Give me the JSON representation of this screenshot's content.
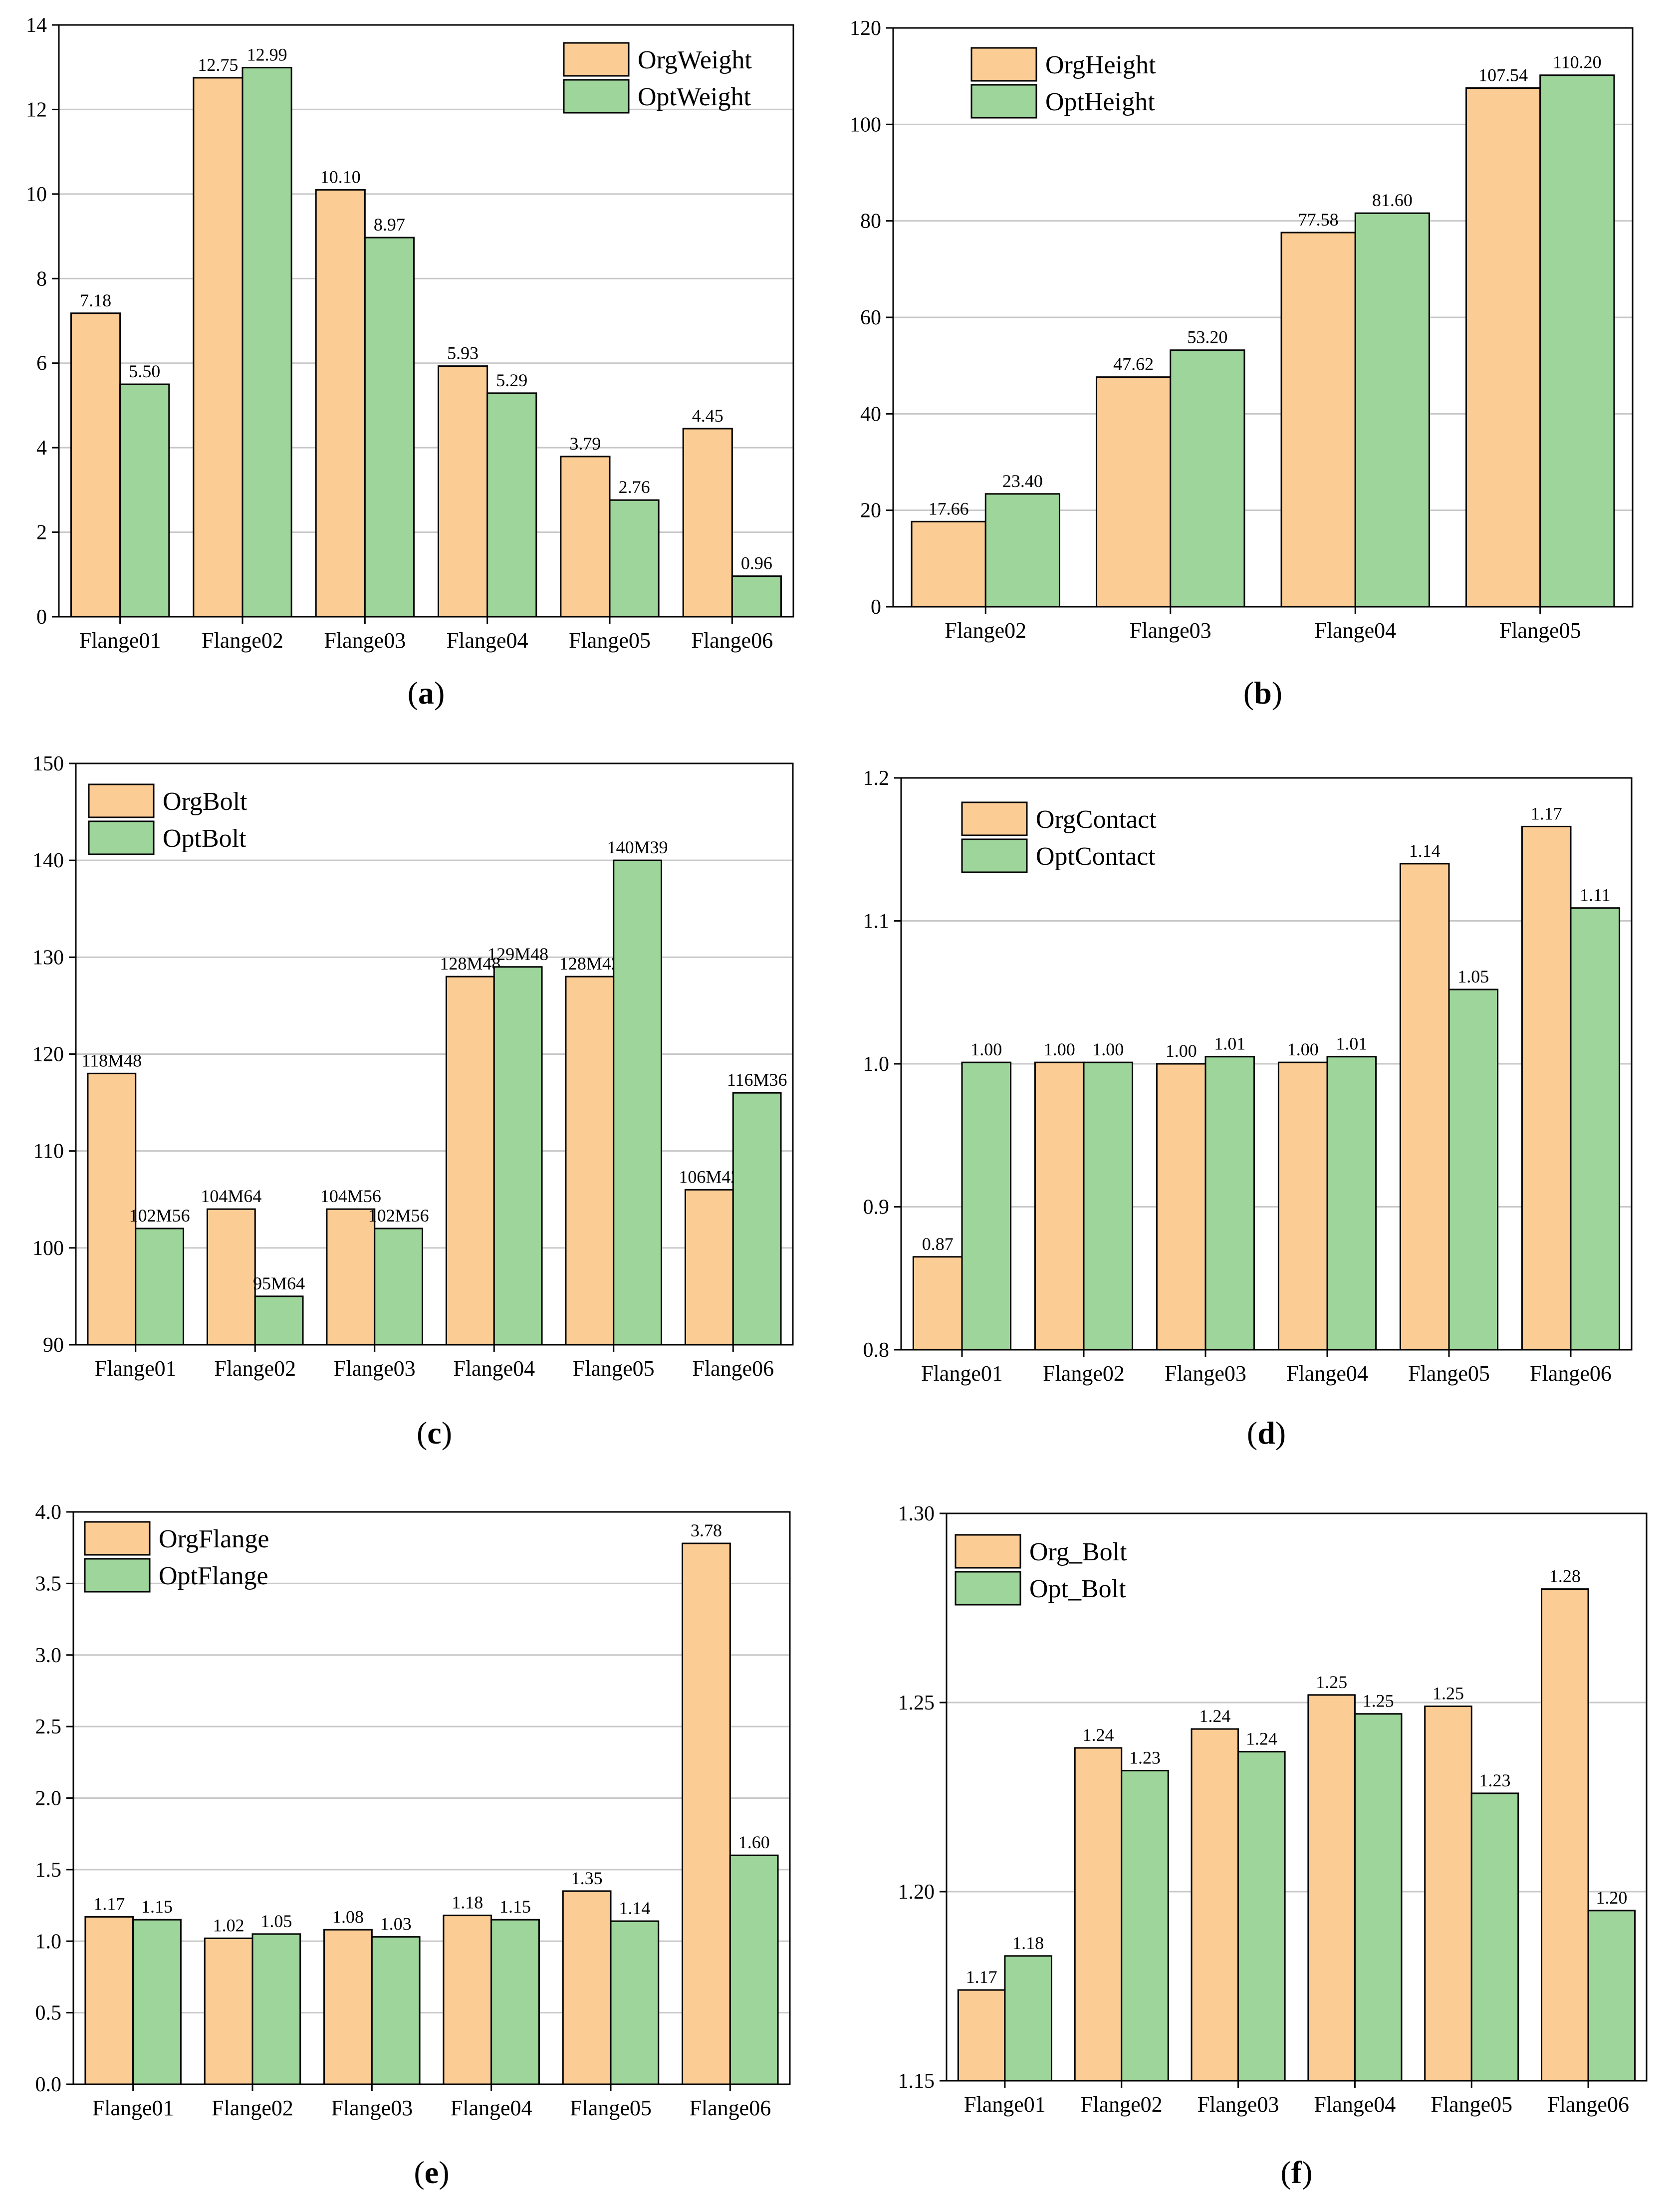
{
  "figure": {
    "colors": {
      "org": "#FCCC95",
      "opt": "#9DD59A",
      "grid": "#c8c8c8",
      "axis": "#000000"
    }
  },
  "chart_data": [
    {
      "panel_label": "(a)",
      "type": "bar",
      "categories": [
        "Flange01",
        "Flange02",
        "Flange03",
        "Flange04",
        "Flange05",
        "Flange06"
      ],
      "series": [
        {
          "name": "OrgWeight",
          "values": [
            7.18,
            12.75,
            10.1,
            5.93,
            3.79,
            4.45
          ],
          "labels": [
            "7.18",
            "12.75",
            "10.10",
            "5.93",
            "3.79",
            "4.45"
          ]
        },
        {
          "name": "OptWeight",
          "values": [
            5.5,
            12.99,
            8.97,
            5.29,
            2.76,
            0.96
          ],
          "labels": [
            "5.50",
            "12.99",
            "8.97",
            "5.29",
            "2.76",
            "0.96"
          ]
        }
      ],
      "ylim": [
        0,
        14
      ],
      "yticks": [
        "0",
        "2",
        "4",
        "6",
        "8",
        "10",
        "12",
        "14"
      ],
      "grid": true,
      "legend": "top-right"
    },
    {
      "panel_label": "(b)",
      "type": "bar",
      "categories": [
        "Flange02",
        "Flange03",
        "Flange04",
        "Flange05"
      ],
      "series": [
        {
          "name": "OrgHeight",
          "values": [
            17.66,
            47.62,
            77.58,
            107.54
          ],
          "labels": [
            "17.66",
            "47.62",
            "77.58",
            "107.54"
          ]
        },
        {
          "name": "OptHeight",
          "values": [
            23.4,
            53.2,
            81.6,
            110.2
          ],
          "labels": [
            "23.40",
            "53.20",
            "81.60",
            "110.20"
          ]
        }
      ],
      "ylim": [
        0,
        120
      ],
      "yticks": [
        "0",
        "20",
        "40",
        "60",
        "80",
        "100",
        "120"
      ],
      "grid": true,
      "legend": "top-left"
    },
    {
      "panel_label": "(c)",
      "type": "bar",
      "categories": [
        "Flange01",
        "Flange02",
        "Flange03",
        "Flange04",
        "Flange05",
        "Flange06"
      ],
      "series": [
        {
          "name": "OrgBolt",
          "values": [
            118,
            104,
            104,
            128,
            128,
            106
          ],
          "labels": [
            "118M48",
            "104M64",
            "104M56",
            "128M48",
            "128M42",
            "106M42"
          ]
        },
        {
          "name": "OptBolt",
          "values": [
            102,
            95,
            102,
            129,
            140,
            116
          ],
          "labels": [
            "102M56",
            "95M64",
            "102M56",
            "129M48",
            "140M39",
            "116M36"
          ]
        }
      ],
      "ylim": [
        90,
        150
      ],
      "yticks": [
        "90",
        "100",
        "110",
        "120",
        "130",
        "140",
        "150"
      ],
      "grid": true,
      "legend": "top-left"
    },
    {
      "panel_label": "(d)",
      "type": "bar",
      "categories": [
        "Flange01",
        "Flange02",
        "Flange03",
        "Flange04",
        "Flange05",
        "Flange06"
      ],
      "series": [
        {
          "name": "OrgContact",
          "values": [
            0.865,
            1.001,
            1.0,
            1.001,
            1.14,
            1.166
          ],
          "labels": [
            "0.87",
            "1.00",
            "1.00",
            "1.00",
            "1.14",
            "1.17"
          ]
        },
        {
          "name": "OptContact",
          "values": [
            1.001,
            1.001,
            1.005,
            1.005,
            1.052,
            1.109
          ],
          "labels": [
            "1.00",
            "1.00",
            "1.01",
            "1.01",
            "1.05",
            "1.11"
          ]
        }
      ],
      "ylim": [
        0.8,
        1.2
      ],
      "yticks": [
        "0.8",
        "0.9",
        "1.0",
        "1.1",
        "1.2"
      ],
      "grid": true,
      "legend": "top-left"
    },
    {
      "panel_label": "(e)",
      "type": "bar",
      "categories": [
        "Flange01",
        "Flange02",
        "Flange03",
        "Flange04",
        "Flange05",
        "Flange06"
      ],
      "series": [
        {
          "name": "OrgFlange",
          "values": [
            1.17,
            1.02,
            1.08,
            1.18,
            1.35,
            3.78
          ],
          "labels": [
            "1.17",
            "1.02",
            "1.08",
            "1.18",
            "1.35",
            "3.78"
          ]
        },
        {
          "name": "OptFlange",
          "values": [
            1.15,
            1.05,
            1.03,
            1.15,
            1.14,
            1.6
          ],
          "labels": [
            "1.15",
            "1.05",
            "1.03",
            "1.15",
            "1.14",
            "1.60"
          ]
        }
      ],
      "ylim": [
        0,
        4.0
      ],
      "yticks": [
        "0.0",
        "0.5",
        "1.0",
        "1.5",
        "2.0",
        "2.5",
        "3.0",
        "3.5",
        "4.0"
      ],
      "grid": true,
      "legend": "top-left"
    },
    {
      "panel_label": "(f)",
      "type": "bar",
      "categories": [
        "Flange01",
        "Flange02",
        "Flange03",
        "Flange04",
        "Flange05",
        "Flange06"
      ],
      "series": [
        {
          "name": "Org_Bolt",
          "values": [
            1.174,
            1.238,
            1.243,
            1.252,
            1.249,
            1.28
          ],
          "labels": [
            "1.17",
            "1.24",
            "1.24",
            "1.25",
            "1.25",
            "1.28"
          ]
        },
        {
          "name": "Opt_Bolt",
          "values": [
            1.183,
            1.232,
            1.237,
            1.247,
            1.226,
            1.195
          ],
          "labels": [
            "1.18",
            "1.23",
            "1.24",
            "1.25",
            "1.23",
            "1.20"
          ]
        }
      ],
      "ylim": [
        1.15,
        1.3
      ],
      "yticks": [
        "1.15",
        "1.20",
        "1.25",
        "1.30"
      ],
      "grid": true,
      "legend": "top-left"
    }
  ]
}
